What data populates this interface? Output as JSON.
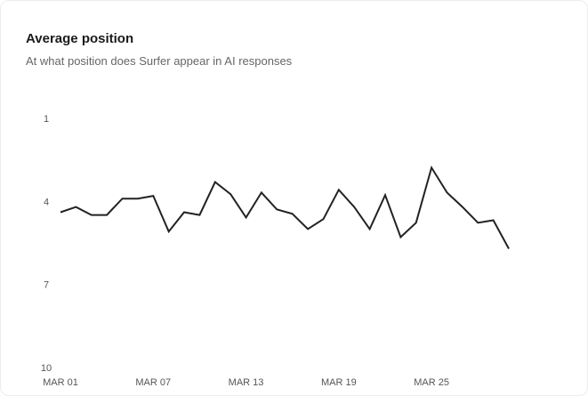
{
  "chart_data": {
    "type": "line",
    "title": "Average position",
    "subtitle": "At what position does Surfer appear in AI responses",
    "xlabel": "",
    "ylabel": "",
    "ylim": [
      1,
      10
    ],
    "y_inverted": true,
    "yticks": [
      "1",
      "4",
      "7",
      "10"
    ],
    "xtick_labels": [
      "MAR 01",
      "MAR 07",
      "MAR 13",
      "MAR 19",
      "MAR 25"
    ],
    "x": [
      "MAR 01",
      "MAR 02",
      "MAR 03",
      "MAR 04",
      "MAR 05",
      "MAR 06",
      "MAR 07",
      "MAR 08",
      "MAR 09",
      "MAR 10",
      "MAR 11",
      "MAR 12",
      "MAR 13",
      "MAR 14",
      "MAR 15",
      "MAR 16",
      "MAR 17",
      "MAR 18",
      "MAR 19",
      "MAR 20",
      "MAR 21",
      "MAR 22",
      "MAR 23",
      "MAR 24",
      "MAR 25",
      "MAR 26",
      "MAR 27",
      "MAR 28",
      "MAR 29",
      "MAR 30"
    ],
    "series": [
      {
        "name": "Average position",
        "color": "#222222",
        "values": [
          4.39,
          4.2,
          4.49,
          4.49,
          3.9,
          3.9,
          3.8,
          5.09,
          4.39,
          4.49,
          3.3,
          3.74,
          4.58,
          3.68,
          4.29,
          4.45,
          5.0,
          4.64,
          3.58,
          4.2,
          5.0,
          3.77,
          5.29,
          4.77,
          2.78,
          3.68,
          4.2,
          4.77,
          4.68,
          5.71
        ]
      }
    ],
    "grid": false,
    "legend": "none"
  }
}
